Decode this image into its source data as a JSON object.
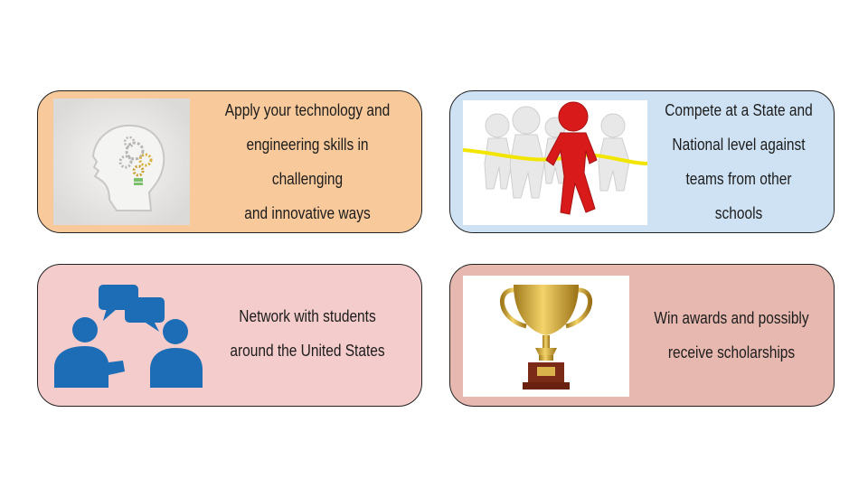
{
  "cards": [
    {
      "lines": [
        "Apply your technology and",
        "engineering skills in challenging",
        "and innovative ways"
      ]
    },
    {
      "lines": [
        "Compete at a State and",
        "National level against",
        "teams from other schools"
      ]
    },
    {
      "lines": [
        "Network with students",
        "around the United States"
      ]
    },
    {
      "lines": [
        "Win awards and possibly",
        "receive scholarships"
      ]
    }
  ],
  "icons": {
    "card1": "head-gears-icon",
    "card2": "race-finish-icon",
    "card3": "people-chat-icon",
    "card4": "trophy-icon"
  },
  "colors": {
    "orange": "#f8c99b",
    "blue": "#cfe2f3",
    "pink": "#f4cccc",
    "rose": "#e6b8af",
    "icon_blue": "#1c6db5",
    "runner_red": "#d91a1a",
    "gold": "#d4a531"
  }
}
